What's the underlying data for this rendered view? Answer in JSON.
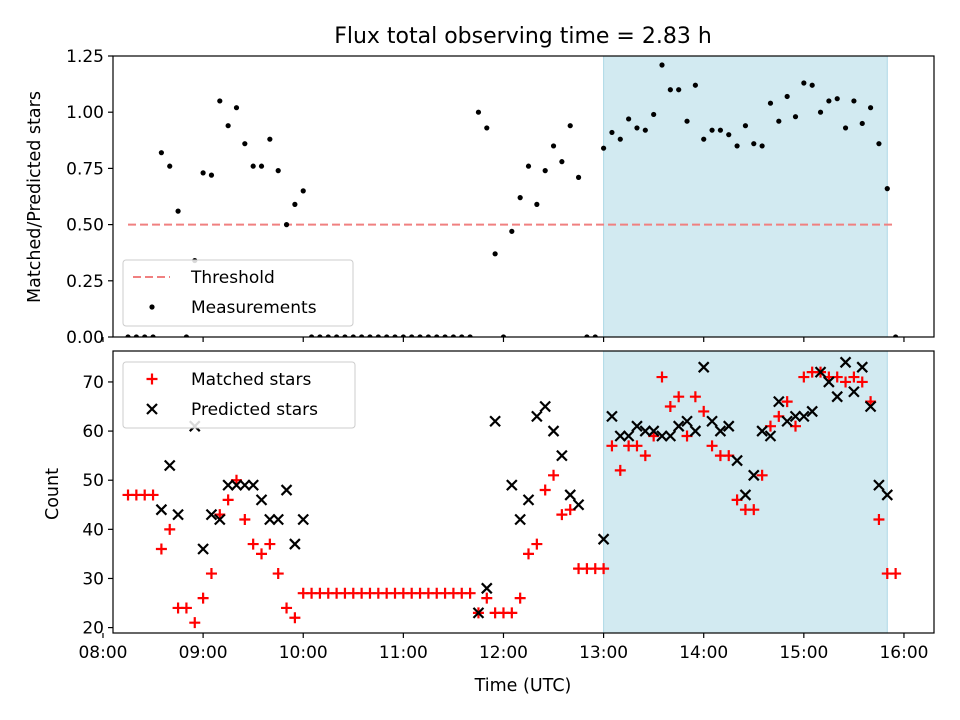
{
  "chart_data": [
    {
      "type": "scatter",
      "title": "Flux total observing time = 2.83 h",
      "xlabel": "",
      "ylabel": "Matched/Predicted stars",
      "xlim": [
        "08:06",
        "16:18"
      ],
      "ylim": [
        0,
        1.25
      ],
      "yticks": [
        0.0,
        0.25,
        0.5,
        0.75,
        1.0,
        1.25
      ],
      "ytick_labels": [
        "0.00",
        "0.25",
        "0.50",
        "0.75",
        "1.00",
        "1.25"
      ],
      "highlight_span": {
        "x": [
          "13:00",
          "15:50"
        ],
        "color": "#add8e6"
      },
      "threshold": {
        "name": "Threshold",
        "value": 0.5,
        "x": [
          "08:15",
          "15:55"
        ],
        "color": "#f08080",
        "style": "dashed"
      },
      "legend_position": "lower-left",
      "series": [
        {
          "name": "Measurements",
          "marker": "dot",
          "color": "#000000",
          "points": [
            [
              "08:15",
              0
            ],
            [
              "08:20",
              0
            ],
            [
              "08:25",
              0
            ],
            [
              "08:30",
              0
            ],
            [
              "08:35",
              0.82
            ],
            [
              "08:40",
              0.76
            ],
            [
              "08:45",
              0.56
            ],
            [
              "08:50",
              0
            ],
            [
              "08:55",
              0.34
            ],
            [
              "09:00",
              0.73
            ],
            [
              "09:05",
              0.72
            ],
            [
              "09:10",
              1.05
            ],
            [
              "09:15",
              0.94
            ],
            [
              "09:20",
              1.02
            ],
            [
              "09:25",
              0.86
            ],
            [
              "09:30",
              0.76
            ],
            [
              "09:35",
              0.76
            ],
            [
              "09:40",
              0.88
            ],
            [
              "09:45",
              0.74
            ],
            [
              "09:50",
              0.5
            ],
            [
              "09:55",
              0.59
            ],
            [
              "10:00",
              0.65
            ],
            [
              "10:05",
              0
            ],
            [
              "10:10",
              0
            ],
            [
              "10:15",
              0
            ],
            [
              "10:20",
              0
            ],
            [
              "10:25",
              0
            ],
            [
              "10:30",
              0
            ],
            [
              "10:35",
              0
            ],
            [
              "10:40",
              0
            ],
            [
              "10:45",
              0
            ],
            [
              "10:50",
              0
            ],
            [
              "10:55",
              0
            ],
            [
              "11:00",
              0
            ],
            [
              "11:05",
              0
            ],
            [
              "11:10",
              0
            ],
            [
              "11:15",
              0
            ],
            [
              "11:20",
              0
            ],
            [
              "11:25",
              0
            ],
            [
              "11:30",
              0
            ],
            [
              "11:35",
              0
            ],
            [
              "11:40",
              0
            ],
            [
              "11:45",
              1.0
            ],
            [
              "11:50",
              0.93
            ],
            [
              "11:55",
              0.37
            ],
            [
              "12:00",
              0
            ],
            [
              "12:05",
              0.47
            ],
            [
              "12:10",
              0.62
            ],
            [
              "12:15",
              0.76
            ],
            [
              "12:20",
              0.59
            ],
            [
              "12:25",
              0.74
            ],
            [
              "12:30",
              0.85
            ],
            [
              "12:35",
              0.78
            ],
            [
              "12:40",
              0.94
            ],
            [
              "12:45",
              0.71
            ],
            [
              "12:50",
              0
            ],
            [
              "12:55",
              0
            ],
            [
              "13:00",
              0.84
            ],
            [
              "13:05",
              0.91
            ],
            [
              "13:10",
              0.88
            ],
            [
              "13:15",
              0.97
            ],
            [
              "13:20",
              0.93
            ],
            [
              "13:25",
              0.92
            ],
            [
              "13:30",
              0.99
            ],
            [
              "13:35",
              1.21
            ],
            [
              "13:40",
              1.1
            ],
            [
              "13:45",
              1.1
            ],
            [
              "13:50",
              0.96
            ],
            [
              "13:55",
              1.12
            ],
            [
              "14:00",
              0.88
            ],
            [
              "14:05",
              0.92
            ],
            [
              "14:10",
              0.92
            ],
            [
              "14:15",
              0.9
            ],
            [
              "14:20",
              0.85
            ],
            [
              "14:25",
              0.94
            ],
            [
              "14:30",
              0.86
            ],
            [
              "14:35",
              0.85
            ],
            [
              "14:40",
              1.04
            ],
            [
              "14:45",
              0.96
            ],
            [
              "14:50",
              1.07
            ],
            [
              "14:55",
              0.98
            ],
            [
              "15:00",
              1.13
            ],
            [
              "15:05",
              1.12
            ],
            [
              "15:10",
              1.0
            ],
            [
              "15:15",
              1.05
            ],
            [
              "15:20",
              1.06
            ],
            [
              "15:25",
              0.93
            ],
            [
              "15:30",
              1.05
            ],
            [
              "15:35",
              0.95
            ],
            [
              "15:40",
              1.02
            ],
            [
              "15:45",
              0.86
            ],
            [
              "15:50",
              0.66
            ],
            [
              "15:55",
              0
            ]
          ]
        }
      ]
    },
    {
      "type": "scatter",
      "title": "",
      "xlabel": "Time (UTC)",
      "ylabel": "Count",
      "xlim": [
        "08:06",
        "16:18"
      ],
      "ylim": [
        18.9,
        76.3
      ],
      "yticks": [
        20,
        30,
        40,
        50,
        60,
        70
      ],
      "ytick_labels": [
        "20",
        "30",
        "40",
        "50",
        "60",
        "70"
      ],
      "xticks": [
        "08:00",
        "09:00",
        "10:00",
        "11:00",
        "12:00",
        "13:00",
        "14:00",
        "15:00",
        "16:00"
      ],
      "xtick_labels": [
        "08:00",
        "09:00",
        "10:00",
        "11:00",
        "12:00",
        "13:00",
        "14:00",
        "15:00",
        "16:00"
      ],
      "highlight_span": {
        "x": [
          "13:00",
          "15:50"
        ],
        "color": "#add8e6"
      },
      "legend_position": "top-left",
      "series": [
        {
          "name": "Matched stars",
          "marker": "plus",
          "color": "#ff0000",
          "points": [
            [
              "08:15",
              47
            ],
            [
              "08:20",
              47
            ],
            [
              "08:25",
              47
            ],
            [
              "08:30",
              47
            ],
            [
              "08:35",
              36
            ],
            [
              "08:40",
              40
            ],
            [
              "08:45",
              24
            ],
            [
              "08:50",
              24
            ],
            [
              "08:55",
              21
            ],
            [
              "09:00",
              26
            ],
            [
              "09:05",
              31
            ],
            [
              "09:10",
              43
            ],
            [
              "09:15",
              46
            ],
            [
              "09:20",
              50
            ],
            [
              "09:25",
              42
            ],
            [
              "09:30",
              37
            ],
            [
              "09:35",
              35
            ],
            [
              "09:40",
              37
            ],
            [
              "09:45",
              31
            ],
            [
              "09:50",
              24
            ],
            [
              "09:55",
              22
            ],
            [
              "10:00",
              27
            ],
            [
              "10:05",
              27
            ],
            [
              "10:10",
              27
            ],
            [
              "10:15",
              27
            ],
            [
              "10:20",
              27
            ],
            [
              "10:25",
              27
            ],
            [
              "10:30",
              27
            ],
            [
              "10:35",
              27
            ],
            [
              "10:40",
              27
            ],
            [
              "10:45",
              27
            ],
            [
              "10:50",
              27
            ],
            [
              "10:55",
              27
            ],
            [
              "11:00",
              27
            ],
            [
              "11:05",
              27
            ],
            [
              "11:10",
              27
            ],
            [
              "11:15",
              27
            ],
            [
              "11:20",
              27
            ],
            [
              "11:25",
              27
            ],
            [
              "11:30",
              27
            ],
            [
              "11:35",
              27
            ],
            [
              "11:40",
              27
            ],
            [
              "11:45",
              23
            ],
            [
              "11:50",
              26
            ],
            [
              "11:55",
              23
            ],
            [
              "12:00",
              23
            ],
            [
              "12:05",
              23
            ],
            [
              "12:10",
              26
            ],
            [
              "12:15",
              35
            ],
            [
              "12:20",
              37
            ],
            [
              "12:25",
              48
            ],
            [
              "12:30",
              51
            ],
            [
              "12:35",
              43
            ],
            [
              "12:40",
              44
            ],
            [
              "12:45",
              32
            ],
            [
              "12:50",
              32
            ],
            [
              "12:55",
              32
            ],
            [
              "13:00",
              32
            ],
            [
              "13:05",
              57
            ],
            [
              "13:10",
              52
            ],
            [
              "13:15",
              57
            ],
            [
              "13:20",
              57
            ],
            [
              "13:25",
              55
            ],
            [
              "13:30",
              59
            ],
            [
              "13:35",
              71
            ],
            [
              "13:40",
              65
            ],
            [
              "13:45",
              67
            ],
            [
              "13:50",
              59
            ],
            [
              "13:55",
              67
            ],
            [
              "14:00",
              64
            ],
            [
              "14:05",
              57
            ],
            [
              "14:10",
              55
            ],
            [
              "14:15",
              55
            ],
            [
              "14:20",
              46
            ],
            [
              "14:25",
              44
            ],
            [
              "14:30",
              44
            ],
            [
              "14:35",
              51
            ],
            [
              "14:40",
              61
            ],
            [
              "14:45",
              63
            ],
            [
              "14:50",
              66
            ],
            [
              "14:55",
              61
            ],
            [
              "15:00",
              71
            ],
            [
              "15:05",
              72
            ],
            [
              "15:10",
              72
            ],
            [
              "15:15",
              71
            ],
            [
              "15:20",
              71
            ],
            [
              "15:25",
              70
            ],
            [
              "15:30",
              71
            ],
            [
              "15:35",
              70
            ],
            [
              "15:40",
              66
            ],
            [
              "15:45",
              42
            ],
            [
              "15:50",
              31
            ],
            [
              "15:55",
              31
            ]
          ]
        },
        {
          "name": "Predicted stars",
          "marker": "x",
          "color": "#000000",
          "points": [
            [
              "08:35",
              44
            ],
            [
              "08:40",
              53
            ],
            [
              "08:45",
              43
            ],
            [
              "08:55",
              61
            ],
            [
              "09:00",
              36
            ],
            [
              "09:05",
              43
            ],
            [
              "09:10",
              42
            ],
            [
              "09:15",
              49
            ],
            [
              "09:20",
              49
            ],
            [
              "09:25",
              49
            ],
            [
              "09:30",
              49
            ],
            [
              "09:35",
              46
            ],
            [
              "09:40",
              42
            ],
            [
              "09:45",
              42
            ],
            [
              "09:50",
              48
            ],
            [
              "09:55",
              37
            ],
            [
              "10:00",
              42
            ],
            [
              "11:45",
              23
            ],
            [
              "11:50",
              28
            ],
            [
              "11:55",
              62
            ],
            [
              "12:05",
              49
            ],
            [
              "12:10",
              42
            ],
            [
              "12:15",
              46
            ],
            [
              "12:20",
              63
            ],
            [
              "12:25",
              65
            ],
            [
              "12:30",
              60
            ],
            [
              "12:35",
              55
            ],
            [
              "12:40",
              47
            ],
            [
              "12:45",
              45
            ],
            [
              "13:00",
              38
            ],
            [
              "13:05",
              63
            ],
            [
              "13:10",
              59
            ],
            [
              "13:15",
              59
            ],
            [
              "13:20",
              61
            ],
            [
              "13:25",
              60
            ],
            [
              "13:30",
              60
            ],
            [
              "13:35",
              59
            ],
            [
              "13:40",
              59
            ],
            [
              "13:45",
              61
            ],
            [
              "13:50",
              62
            ],
            [
              "13:55",
              60
            ],
            [
              "14:00",
              73
            ],
            [
              "14:05",
              62
            ],
            [
              "14:10",
              60
            ],
            [
              "14:15",
              61
            ],
            [
              "14:20",
              54
            ],
            [
              "14:25",
              47
            ],
            [
              "14:30",
              51
            ],
            [
              "14:35",
              60
            ],
            [
              "14:40",
              59
            ],
            [
              "14:45",
              66
            ],
            [
              "14:50",
              62
            ],
            [
              "14:55",
              63
            ],
            [
              "15:00",
              63
            ],
            [
              "15:05",
              64
            ],
            [
              "15:10",
              72
            ],
            [
              "15:15",
              70
            ],
            [
              "15:20",
              67
            ],
            [
              "15:25",
              74
            ],
            [
              "15:30",
              68
            ],
            [
              "15:35",
              73
            ],
            [
              "15:40",
              65
            ],
            [
              "15:45",
              49
            ],
            [
              "15:50",
              47
            ]
          ]
        }
      ]
    }
  ]
}
